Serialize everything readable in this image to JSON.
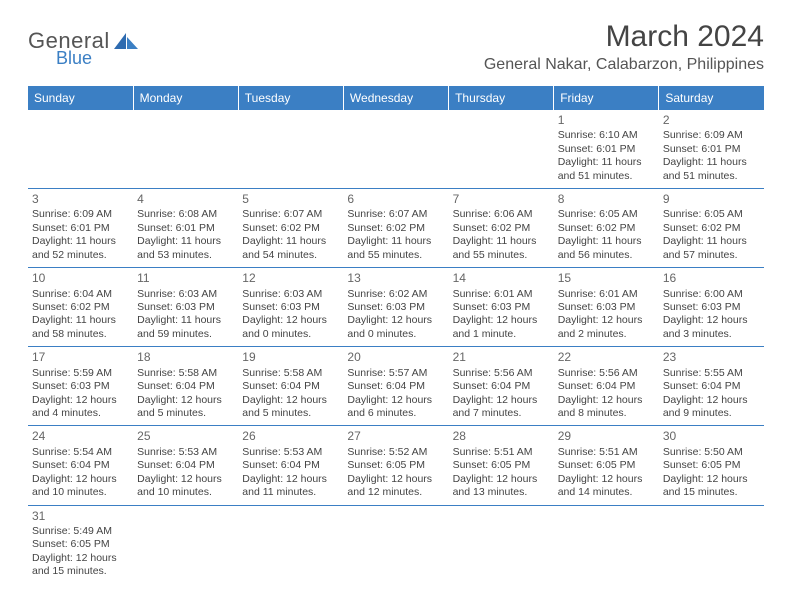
{
  "logo": {
    "general": "General",
    "blue": "Blue"
  },
  "title": "March 2024",
  "subtitle": "General Nakar, Calabarzon, Philippines",
  "colors": {
    "header_bg": "#3b7fc4",
    "header_text": "#ffffff",
    "cell_border": "#3b7fc4",
    "body_text": "#444444"
  },
  "days": [
    "Sunday",
    "Monday",
    "Tuesday",
    "Wednesday",
    "Thursday",
    "Friday",
    "Saturday"
  ],
  "weeks": [
    [
      null,
      null,
      null,
      null,
      null,
      {
        "n": "1",
        "sr": "Sunrise: 6:10 AM",
        "ss": "Sunset: 6:01 PM",
        "dl1": "Daylight: 11 hours",
        "dl2": "and 51 minutes."
      },
      {
        "n": "2",
        "sr": "Sunrise: 6:09 AM",
        "ss": "Sunset: 6:01 PM",
        "dl1": "Daylight: 11 hours",
        "dl2": "and 51 minutes."
      }
    ],
    [
      {
        "n": "3",
        "sr": "Sunrise: 6:09 AM",
        "ss": "Sunset: 6:01 PM",
        "dl1": "Daylight: 11 hours",
        "dl2": "and 52 minutes."
      },
      {
        "n": "4",
        "sr": "Sunrise: 6:08 AM",
        "ss": "Sunset: 6:01 PM",
        "dl1": "Daylight: 11 hours",
        "dl2": "and 53 minutes."
      },
      {
        "n": "5",
        "sr": "Sunrise: 6:07 AM",
        "ss": "Sunset: 6:02 PM",
        "dl1": "Daylight: 11 hours",
        "dl2": "and 54 minutes."
      },
      {
        "n": "6",
        "sr": "Sunrise: 6:07 AM",
        "ss": "Sunset: 6:02 PM",
        "dl1": "Daylight: 11 hours",
        "dl2": "and 55 minutes."
      },
      {
        "n": "7",
        "sr": "Sunrise: 6:06 AM",
        "ss": "Sunset: 6:02 PM",
        "dl1": "Daylight: 11 hours",
        "dl2": "and 55 minutes."
      },
      {
        "n": "8",
        "sr": "Sunrise: 6:05 AM",
        "ss": "Sunset: 6:02 PM",
        "dl1": "Daylight: 11 hours",
        "dl2": "and 56 minutes."
      },
      {
        "n": "9",
        "sr": "Sunrise: 6:05 AM",
        "ss": "Sunset: 6:02 PM",
        "dl1": "Daylight: 11 hours",
        "dl2": "and 57 minutes."
      }
    ],
    [
      {
        "n": "10",
        "sr": "Sunrise: 6:04 AM",
        "ss": "Sunset: 6:02 PM",
        "dl1": "Daylight: 11 hours",
        "dl2": "and 58 minutes."
      },
      {
        "n": "11",
        "sr": "Sunrise: 6:03 AM",
        "ss": "Sunset: 6:03 PM",
        "dl1": "Daylight: 11 hours",
        "dl2": "and 59 minutes."
      },
      {
        "n": "12",
        "sr": "Sunrise: 6:03 AM",
        "ss": "Sunset: 6:03 PM",
        "dl1": "Daylight: 12 hours",
        "dl2": "and 0 minutes."
      },
      {
        "n": "13",
        "sr": "Sunrise: 6:02 AM",
        "ss": "Sunset: 6:03 PM",
        "dl1": "Daylight: 12 hours",
        "dl2": "and 0 minutes."
      },
      {
        "n": "14",
        "sr": "Sunrise: 6:01 AM",
        "ss": "Sunset: 6:03 PM",
        "dl1": "Daylight: 12 hours",
        "dl2": "and 1 minute."
      },
      {
        "n": "15",
        "sr": "Sunrise: 6:01 AM",
        "ss": "Sunset: 6:03 PM",
        "dl1": "Daylight: 12 hours",
        "dl2": "and 2 minutes."
      },
      {
        "n": "16",
        "sr": "Sunrise: 6:00 AM",
        "ss": "Sunset: 6:03 PM",
        "dl1": "Daylight: 12 hours",
        "dl2": "and 3 minutes."
      }
    ],
    [
      {
        "n": "17",
        "sr": "Sunrise: 5:59 AM",
        "ss": "Sunset: 6:03 PM",
        "dl1": "Daylight: 12 hours",
        "dl2": "and 4 minutes."
      },
      {
        "n": "18",
        "sr": "Sunrise: 5:58 AM",
        "ss": "Sunset: 6:04 PM",
        "dl1": "Daylight: 12 hours",
        "dl2": "and 5 minutes."
      },
      {
        "n": "19",
        "sr": "Sunrise: 5:58 AM",
        "ss": "Sunset: 6:04 PM",
        "dl1": "Daylight: 12 hours",
        "dl2": "and 5 minutes."
      },
      {
        "n": "20",
        "sr": "Sunrise: 5:57 AM",
        "ss": "Sunset: 6:04 PM",
        "dl1": "Daylight: 12 hours",
        "dl2": "and 6 minutes."
      },
      {
        "n": "21",
        "sr": "Sunrise: 5:56 AM",
        "ss": "Sunset: 6:04 PM",
        "dl1": "Daylight: 12 hours",
        "dl2": "and 7 minutes."
      },
      {
        "n": "22",
        "sr": "Sunrise: 5:56 AM",
        "ss": "Sunset: 6:04 PM",
        "dl1": "Daylight: 12 hours",
        "dl2": "and 8 minutes."
      },
      {
        "n": "23",
        "sr": "Sunrise: 5:55 AM",
        "ss": "Sunset: 6:04 PM",
        "dl1": "Daylight: 12 hours",
        "dl2": "and 9 minutes."
      }
    ],
    [
      {
        "n": "24",
        "sr": "Sunrise: 5:54 AM",
        "ss": "Sunset: 6:04 PM",
        "dl1": "Daylight: 12 hours",
        "dl2": "and 10 minutes."
      },
      {
        "n": "25",
        "sr": "Sunrise: 5:53 AM",
        "ss": "Sunset: 6:04 PM",
        "dl1": "Daylight: 12 hours",
        "dl2": "and 10 minutes."
      },
      {
        "n": "26",
        "sr": "Sunrise: 5:53 AM",
        "ss": "Sunset: 6:04 PM",
        "dl1": "Daylight: 12 hours",
        "dl2": "and 11 minutes."
      },
      {
        "n": "27",
        "sr": "Sunrise: 5:52 AM",
        "ss": "Sunset: 6:05 PM",
        "dl1": "Daylight: 12 hours",
        "dl2": "and 12 minutes."
      },
      {
        "n": "28",
        "sr": "Sunrise: 5:51 AM",
        "ss": "Sunset: 6:05 PM",
        "dl1": "Daylight: 12 hours",
        "dl2": "and 13 minutes."
      },
      {
        "n": "29",
        "sr": "Sunrise: 5:51 AM",
        "ss": "Sunset: 6:05 PM",
        "dl1": "Daylight: 12 hours",
        "dl2": "and 14 minutes."
      },
      {
        "n": "30",
        "sr": "Sunrise: 5:50 AM",
        "ss": "Sunset: 6:05 PM",
        "dl1": "Daylight: 12 hours",
        "dl2": "and 15 minutes."
      }
    ],
    [
      {
        "n": "31",
        "sr": "Sunrise: 5:49 AM",
        "ss": "Sunset: 6:05 PM",
        "dl1": "Daylight: 12 hours",
        "dl2": "and 15 minutes."
      },
      null,
      null,
      null,
      null,
      null,
      null
    ]
  ]
}
